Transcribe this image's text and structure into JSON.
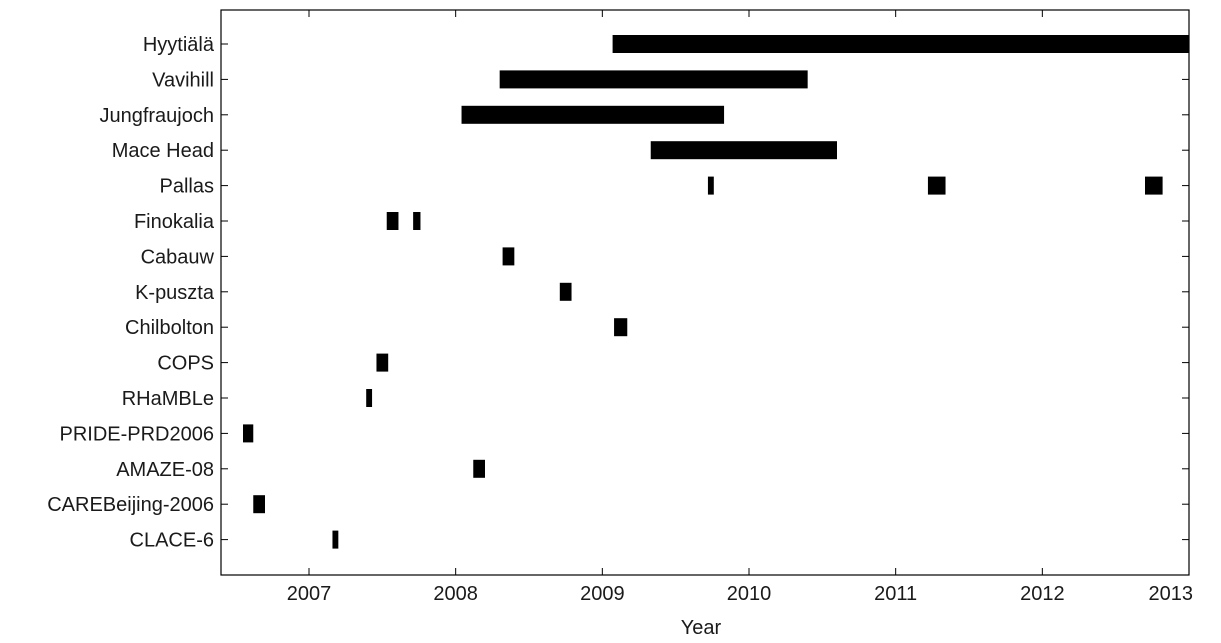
{
  "chart_data": {
    "type": "timeline",
    "xlabel": "Year",
    "ylabel": "",
    "title": "",
    "xlim": [
      2006.4,
      2013.0
    ],
    "x_ticks": [
      "2007",
      "2008",
      "2009",
      "2010",
      "2011",
      "2012",
      "2013"
    ],
    "grid": false,
    "legend": "none",
    "bar_color": "#000000",
    "sites": [
      {
        "name": "Hyytiälä",
        "intervals": [
          [
            2009.07,
            2013.0
          ]
        ]
      },
      {
        "name": "Vavihill",
        "intervals": [
          [
            2008.3,
            2010.4
          ]
        ]
      },
      {
        "name": "Jungfraujoch",
        "intervals": [
          [
            2008.04,
            2009.83
          ]
        ]
      },
      {
        "name": "Mace Head",
        "intervals": [
          [
            2009.33,
            2010.6
          ]
        ]
      },
      {
        "name": "Pallas",
        "intervals": [
          [
            2009.72,
            2009.76
          ],
          [
            2011.22,
            2011.34
          ],
          [
            2012.7,
            2012.82
          ]
        ]
      },
      {
        "name": "Finokalia",
        "intervals": [
          [
            2007.53,
            2007.61
          ],
          [
            2007.71,
            2007.76
          ]
        ]
      },
      {
        "name": "Cabauw",
        "intervals": [
          [
            2008.32,
            2008.4
          ]
        ]
      },
      {
        "name": "K-puszta",
        "intervals": [
          [
            2008.71,
            2008.79
          ]
        ]
      },
      {
        "name": "Chilbolton",
        "intervals": [
          [
            2009.08,
            2009.17
          ]
        ]
      },
      {
        "name": "COPS",
        "intervals": [
          [
            2007.46,
            2007.54
          ]
        ]
      },
      {
        "name": "RHaMBLe",
        "intervals": [
          [
            2007.39,
            2007.43
          ]
        ]
      },
      {
        "name": "PRIDE-PRD2006",
        "intervals": [
          [
            2006.55,
            2006.62
          ]
        ]
      },
      {
        "name": "AMAZE-08",
        "intervals": [
          [
            2008.12,
            2008.2
          ]
        ]
      },
      {
        "name": "CAREBeijing-2006",
        "intervals": [
          [
            2006.62,
            2006.7
          ]
        ]
      },
      {
        "name": "CLACE-6",
        "intervals": [
          [
            2007.16,
            2007.2
          ]
        ]
      }
    ]
  }
}
